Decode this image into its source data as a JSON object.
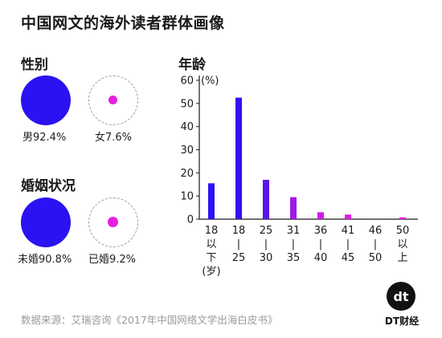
{
  "title": "中国网文的海外读者群体画像",
  "gender": {
    "heading": "性别",
    "male_label": "男92.4%",
    "female_label": "女7.6%",
    "male_pct": 92.4,
    "female_pct": 7.6
  },
  "marital": {
    "heading": "婚姻状况",
    "unmarried_label": "未婚90.8%",
    "married_label": "已婚9.2%",
    "unmarried_pct": 90.8,
    "married_pct": 9.2
  },
  "colors": {
    "primary_blue": "#2a12f2",
    "magenta": "#e61ee0",
    "axis": "#1a1a1a",
    "dashed_outline": "#9a9a9a"
  },
  "chart_data": {
    "type": "bar",
    "title": "年龄",
    "ylabel": "(%)",
    "ylim": [
      0,
      60
    ],
    "yticks": [
      "0",
      "10",
      "20",
      "30",
      "40",
      "50",
      "60"
    ],
    "categories": [
      [
        "18",
        "以",
        "下",
        "(岁)"
      ],
      [
        "18",
        "|",
        "25"
      ],
      [
        "25",
        "|",
        "30"
      ],
      [
        "31",
        "|",
        "35"
      ],
      [
        "36",
        "|",
        "40"
      ],
      [
        "41",
        "|",
        "45"
      ],
      [
        "46",
        "|",
        "50"
      ],
      [
        "50",
        "以",
        "上"
      ]
    ],
    "values": [
      15.5,
      52.5,
      17,
      9.5,
      3,
      2,
      0,
      0.8
    ],
    "bar_colors": [
      "#2a12f2",
      "#3510ef",
      "#5a14ea",
      "#a019e6",
      "#cf1ce3",
      "#dc1de2",
      "#e21ee1",
      "#e61ee0"
    ],
    "grid": false
  },
  "source": "数据来源：艾瑞咨询《2017年中国网络文学出海白皮书》",
  "logo": {
    "mark": "dt",
    "text": "DT财经"
  }
}
